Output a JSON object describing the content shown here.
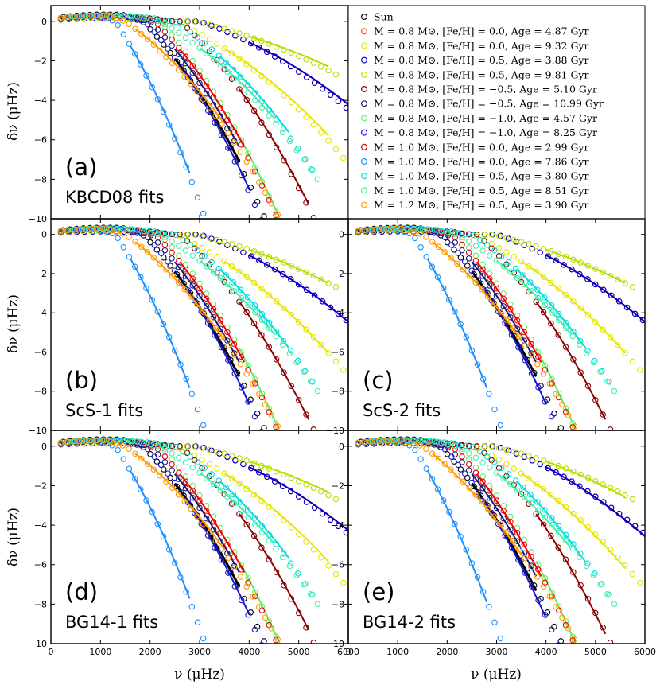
{
  "chart_data": {
    "type": "scatter",
    "ylabel": "δν (μHz)",
    "xlabel": "ν (μHz)",
    "xlim": [
      0,
      6000
    ],
    "ylim": [
      -10,
      0.8
    ],
    "xticks": [
      0,
      1000,
      2000,
      3000,
      4000,
      5000,
      6000
    ],
    "yticks": [
      0,
      -2,
      -4,
      -6,
      -8,
      -10
    ],
    "legend": [
      {
        "label": "Sun",
        "color": "#000000"
      },
      {
        "label": "M = 0.8 M⊙, [Fe/H] = 0.0, Age = 4.87 Gyr",
        "color": "#ff4500"
      },
      {
        "label": "M = 0.8 M⊙, [Fe/H] = 0.0, Age = 9.32 Gyr",
        "color": "#e6e600"
      },
      {
        "label": "M = 0.8 M⊙, [Fe/H] = 0.5, Age = 3.88 Gyr",
        "color": "#0000cd"
      },
      {
        "label": "M = 0.8 M⊙, [Fe/H] = 0.5, Age = 9.81 Gyr",
        "color": "#b7e000"
      },
      {
        "label": "M = 0.8 M⊙, [Fe/H] = −0.5, Age = 5.10 Gyr",
        "color": "#8b0000"
      },
      {
        "label": "M = 0.8 M⊙, [Fe/H] = −0.5, Age = 10.99 Gyr",
        "color": "#191970"
      },
      {
        "label": "M = 0.8 M⊙, [Fe/H] = −1.0, Age = 4.57 Gyr",
        "color": "#66ee66"
      },
      {
        "label": "M = 0.8 M⊙, [Fe/H] = −1.0, Age = 8.25 Gyr",
        "color": "#1515cc"
      },
      {
        "label": "M = 1.0 M⊙, [Fe/H] = 0.0, Age = 2.99 Gyr",
        "color": "#ee0000"
      },
      {
        "label": "M = 1.0 M⊙, [Fe/H] = 0.0, Age = 7.86 Gyr",
        "color": "#1e8fff"
      },
      {
        "label": "M = 1.0 M⊙, [Fe/H] = 0.5, Age = 3.80 Gyr",
        "color": "#00dddd"
      },
      {
        "label": "M = 1.0 M⊙, [Fe/H] = 0.5, Age = 8.51 Gyr",
        "color": "#44eeaa"
      },
      {
        "label": "M = 1.2 M⊙, [Fe/H] = 0.5, Age = 3.90 Gyr",
        "color": "#ff9900"
      }
    ],
    "series": [
      {
        "name": "Sun",
        "color": "#000000",
        "start": 250,
        "step": 135,
        "knee": 1850,
        "end": 4950,
        "ymax": 0.35,
        "slope": 2.5,
        "fit": [
          2500,
          3800
        ]
      },
      {
        "name": "M0.8 FeH0.0 4.87",
        "color": "#ff4500",
        "start": 200,
        "step": 160,
        "knee": 3000,
        "end": 6000,
        "ymax": 0.15,
        "slope": 0.85,
        "fit": [
          4000,
          6000
        ]
      },
      {
        "name": "M0.8 FeH0.0 9.32",
        "color": "#e6e600",
        "start": 200,
        "step": 150,
        "knee": 2500,
        "end": 6000,
        "ymax": 0.25,
        "slope": 1.1,
        "fit": [
          3500,
          5600
        ]
      },
      {
        "name": "M0.8 FeH0.5 3.88",
        "color": "#0000cd",
        "start": 200,
        "step": 160,
        "knee": 3000,
        "end": 6000,
        "ymax": 0.15,
        "slope": 0.85,
        "fit": [
          4000,
          6000
        ]
      },
      {
        "name": "M0.8 FeH0.5 9.81",
        "color": "#b7e000",
        "start": 200,
        "step": 150,
        "knee": 2900,
        "end": 5800,
        "ymax": 0.2,
        "slope": 0.55,
        "fit": [
          4000,
          5600
        ]
      },
      {
        "name": "M0.8 FeH-0.5 5.10",
        "color": "#8b0000",
        "start": 200,
        "step": 150,
        "knee": 2600,
        "end": 6000,
        "ymax": 0.25,
        "slope": 2.2,
        "fit": [
          3800,
          5200
        ]
      },
      {
        "name": "M0.8 FeH-0.5 10.99",
        "color": "#191970",
        "start": 200,
        "step": 140,
        "knee": 2000,
        "end": 3800,
        "ymax": 0.3,
        "slope": 2.5,
        "fit": [
          2500,
          3800
        ]
      },
      {
        "name": "M0.8 FeH-1.0 4.57",
        "color": "#66ee66",
        "start": 200,
        "step": 140,
        "knee": 2200,
        "end": 5900,
        "ymax": 0.3,
        "slope": 2.6,
        "fit": [
          3800,
          4900
        ]
      },
      {
        "name": "M0.8 FeH-1.0 8.25",
        "color": "#1515cc",
        "start": 200,
        "step": 135,
        "knee": 1900,
        "end": 5000,
        "ymax": 0.3,
        "slope": 2.7,
        "fit": [
          2700,
          4000
        ]
      },
      {
        "name": "M1.0 FeH0.0 2.99",
        "color": "#ee0000",
        "start": 200,
        "step": 140,
        "knee": 2100,
        "end": 4600,
        "ymax": 0.3,
        "slope": 2.5,
        "fit": [
          2600,
          3900
        ]
      },
      {
        "name": "M1.0 FeH0.0 7.86",
        "color": "#1e8fff",
        "start": 200,
        "step": 115,
        "knee": 1300,
        "end": 3900,
        "ymax": 0.3,
        "slope": 3.8,
        "fit": [
          1600,
          2800
        ]
      },
      {
        "name": "M1.0 FeH0.5 3.80",
        "color": "#00dddd",
        "start": 200,
        "step": 145,
        "knee": 2500,
        "end": 5400,
        "ymax": 0.3,
        "slope": 1.6,
        "fit": [
          3400,
          4800
        ]
      },
      {
        "name": "M1.0 FeH0.5 8.51",
        "color": "#44eeaa",
        "start": 200,
        "step": 140,
        "knee": 2200,
        "end": 5400,
        "ymax": 0.3,
        "slope": 1.4,
        "fit": [
          3000,
          4500
        ]
      },
      {
        "name": "M1.2 FeH0.5 3.90",
        "color": "#ff9900",
        "start": 200,
        "step": 125,
        "knee": 1500,
        "end": 4600,
        "ymax": 0.3,
        "slope": 1.8,
        "fit": [
          1700,
          3500
        ]
      }
    ],
    "panels": [
      {
        "id": "a",
        "label": "(a)",
        "fit_label": "KBCD08 fits",
        "has_legend": true
      },
      {
        "id": "b",
        "label": "(b)",
        "fit_label": "ScS-1 fits",
        "has_legend": false
      },
      {
        "id": "c",
        "label": "(c)",
        "fit_label": "ScS-2 fits",
        "has_legend": false
      },
      {
        "id": "d",
        "label": "(d)",
        "fit_label": "BG14-1 fits",
        "has_legend": false
      },
      {
        "id": "e",
        "label": "(e)",
        "fit_label": "BG14-2 fits",
        "has_legend": false
      }
    ]
  }
}
